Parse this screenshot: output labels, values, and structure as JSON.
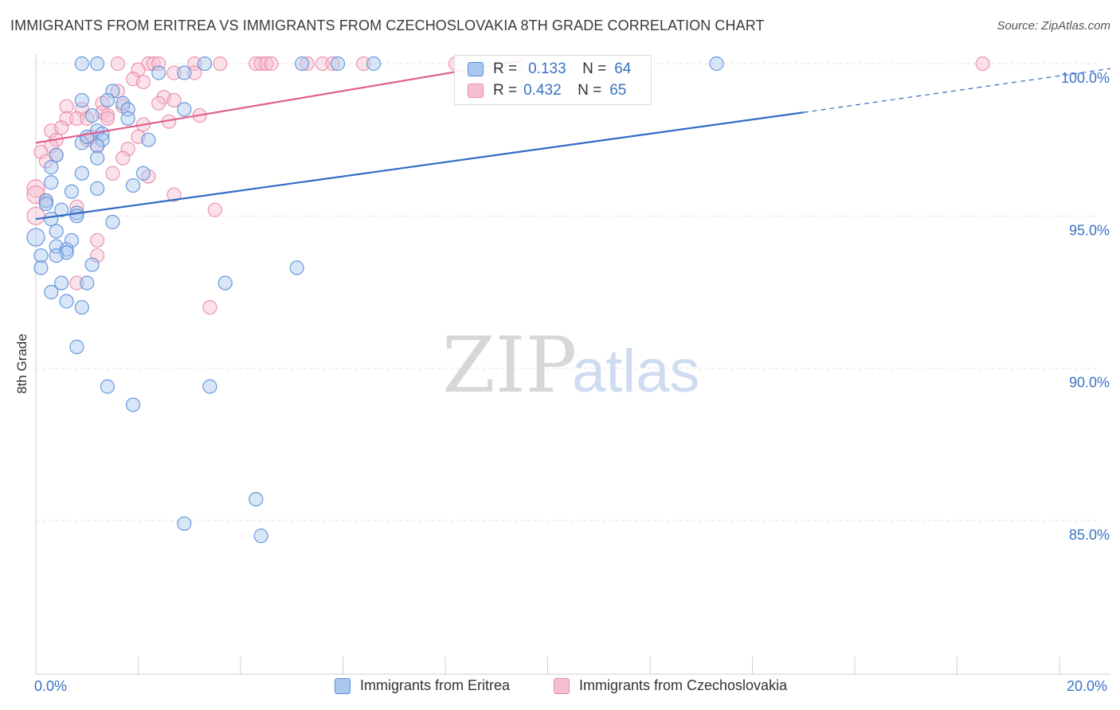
{
  "header": {
    "title": "IMMIGRANTS FROM ERITREA VS IMMIGRANTS FROM CZECHOSLOVAKIA 8TH GRADE CORRELATION CHART",
    "source": "Source: ZipAtlas.com"
  },
  "watermark": {
    "zip": "ZIP",
    "atlas": "atlas"
  },
  "legend": {
    "rows": [
      {
        "r_label": "R =",
        "r_value": "0.133",
        "n_label": "N =",
        "n_value": "64"
      },
      {
        "r_label": "R =",
        "r_value": "0.432",
        "n_label": "N =",
        "n_value": "65"
      }
    ]
  },
  "bottom_legend": {
    "eritrea": "Immigrants from Eritrea",
    "czech": "Immigrants from Czechoslovakia"
  },
  "x_axis": {
    "min_label": "0.0%",
    "max_label": "20.0%"
  },
  "chart_data": {
    "type": "scatter",
    "title": "IMMIGRANTS FROM ERITREA VS IMMIGRANTS FROM CZECHOSLOVAKIA 8TH GRADE CORRELATION CHART",
    "xlabel": "",
    "ylabel": "8th Grade",
    "xlim": [
      0,
      20
    ],
    "ylim": [
      80,
      100.8
    ],
    "y_ticks": [
      85,
      90,
      95,
      100
    ],
    "y_tick_labels": [
      "85.0%",
      "90.0%",
      "95.0%",
      "100.0%"
    ],
    "x_tick_labels": [
      "0.0%",
      "20.0%"
    ],
    "grid": "horizontal dashed",
    "legend_position": "top-center",
    "colors": {
      "eritrea_fill": "#a9c7ef",
      "eritrea_stroke": "#5b8fd8",
      "eritrea_line": "#2f6cc6",
      "czech_fill": "#f6bfd0",
      "czech_stroke": "#e98aa8",
      "czech_line": "#e0608a",
      "tick_label": "#3a72c4"
    },
    "series": [
      {
        "name": "Immigrants from Eritrea",
        "r": 0.133,
        "n": 64,
        "trend": {
          "x0": 0.0,
          "y0": 94.9,
          "x1": 15.0,
          "y1": 98.4,
          "dash_to_x": 20.0,
          "dash_to_y": 99.6
        },
        "points": [
          [
            1.2,
            100.0
          ],
          [
            3.3,
            100.0
          ],
          [
            5.2,
            100.0
          ],
          [
            5.9,
            100.0
          ],
          [
            6.6,
            100.0
          ],
          [
            13.3,
            100.0
          ],
          [
            2.4,
            99.7
          ],
          [
            2.9,
            99.7
          ],
          [
            1.5,
            99.1
          ],
          [
            1.4,
            98.8
          ],
          [
            1.7,
            98.7
          ],
          [
            0.9,
            98.8
          ],
          [
            1.8,
            98.5
          ],
          [
            2.9,
            98.5
          ],
          [
            1.1,
            98.3
          ],
          [
            1.8,
            98.2
          ],
          [
            1.2,
            97.8
          ],
          [
            1.3,
            97.7
          ],
          [
            1.3,
            97.5
          ],
          [
            2.2,
            97.5
          ],
          [
            0.9,
            97.4
          ],
          [
            1.2,
            97.3
          ],
          [
            0.4,
            97.0
          ],
          [
            1.2,
            96.9
          ],
          [
            0.3,
            96.6
          ],
          [
            0.9,
            96.4
          ],
          [
            2.1,
            96.4
          ],
          [
            0.3,
            96.1
          ],
          [
            1.9,
            96.0
          ],
          [
            1.2,
            95.9
          ],
          [
            0.7,
            95.8
          ],
          [
            0.2,
            95.5
          ],
          [
            0.2,
            95.4
          ],
          [
            0.5,
            95.2
          ],
          [
            0.8,
            95.1
          ],
          [
            0.8,
            95.0
          ],
          [
            0.3,
            94.9
          ],
          [
            1.5,
            94.8
          ],
          [
            0.4,
            94.5
          ],
          [
            0.0,
            94.3
          ],
          [
            0.7,
            94.2
          ],
          [
            0.4,
            94.0
          ],
          [
            0.6,
            93.9
          ],
          [
            0.6,
            93.8
          ],
          [
            0.4,
            93.7
          ],
          [
            0.1,
            93.7
          ],
          [
            1.1,
            93.4
          ],
          [
            0.1,
            93.3
          ],
          [
            5.1,
            93.3
          ],
          [
            0.5,
            92.8
          ],
          [
            1.0,
            92.8
          ],
          [
            3.7,
            92.8
          ],
          [
            0.3,
            92.5
          ],
          [
            0.6,
            92.2
          ],
          [
            0.9,
            92.0
          ],
          [
            0.8,
            90.7
          ],
          [
            1.4,
            89.4
          ],
          [
            3.4,
            89.4
          ],
          [
            1.9,
            88.8
          ],
          [
            4.3,
            85.7
          ],
          [
            2.9,
            84.9
          ],
          [
            4.4,
            84.5
          ],
          [
            0.9,
            100.0
          ],
          [
            1.0,
            97.6
          ]
        ]
      },
      {
        "name": "Immigrants from Czechoslovakia",
        "r": 0.432,
        "n": 65,
        "trend": {
          "x0": 0.0,
          "y0": 97.4,
          "x1": 9.5,
          "y1": 100.1
        },
        "points": [
          [
            1.6,
            100.0
          ],
          [
            2.2,
            100.0
          ],
          [
            2.3,
            100.0
          ],
          [
            2.4,
            100.0
          ],
          [
            3.1,
            100.0
          ],
          [
            3.6,
            100.0
          ],
          [
            4.3,
            100.0
          ],
          [
            4.4,
            100.0
          ],
          [
            4.5,
            100.0
          ],
          [
            4.6,
            100.0
          ],
          [
            5.3,
            100.0
          ],
          [
            5.6,
            100.0
          ],
          [
            5.8,
            100.0
          ],
          [
            6.4,
            100.0
          ],
          [
            8.2,
            100.0
          ],
          [
            9.4,
            100.0
          ],
          [
            18.5,
            100.0
          ],
          [
            2.0,
            99.8
          ],
          [
            2.7,
            99.7
          ],
          [
            3.1,
            99.7
          ],
          [
            1.9,
            99.5
          ],
          [
            2.1,
            99.4
          ],
          [
            1.6,
            99.1
          ],
          [
            2.5,
            98.9
          ],
          [
            2.7,
            98.8
          ],
          [
            1.3,
            98.7
          ],
          [
            1.7,
            98.6
          ],
          [
            0.6,
            98.6
          ],
          [
            0.9,
            98.5
          ],
          [
            2.4,
            98.7
          ],
          [
            1.3,
            98.4
          ],
          [
            1.4,
            98.3
          ],
          [
            3.2,
            98.3
          ],
          [
            0.6,
            98.2
          ],
          [
            0.8,
            98.2
          ],
          [
            1.0,
            98.2
          ],
          [
            2.6,
            98.1
          ],
          [
            2.1,
            98.0
          ],
          [
            0.3,
            97.8
          ],
          [
            1.1,
            97.6
          ],
          [
            2.0,
            97.6
          ],
          [
            0.4,
            97.5
          ],
          [
            1.0,
            97.5
          ],
          [
            0.3,
            97.3
          ],
          [
            1.2,
            97.3
          ],
          [
            1.8,
            97.2
          ],
          [
            0.1,
            97.1
          ],
          [
            0.4,
            97.0
          ],
          [
            1.7,
            96.9
          ],
          [
            0.2,
            96.8
          ],
          [
            1.5,
            96.4
          ],
          [
            2.2,
            96.3
          ],
          [
            0.0,
            95.9
          ],
          [
            0.0,
            95.7
          ],
          [
            2.7,
            95.7
          ],
          [
            0.2,
            95.5
          ],
          [
            0.8,
            95.3
          ],
          [
            3.5,
            95.2
          ],
          [
            0.0,
            95.0
          ],
          [
            1.2,
            94.2
          ],
          [
            1.2,
            93.7
          ],
          [
            0.8,
            92.8
          ],
          [
            3.4,
            92.0
          ],
          [
            1.4,
            98.2
          ],
          [
            0.5,
            97.9
          ]
        ]
      }
    ]
  }
}
